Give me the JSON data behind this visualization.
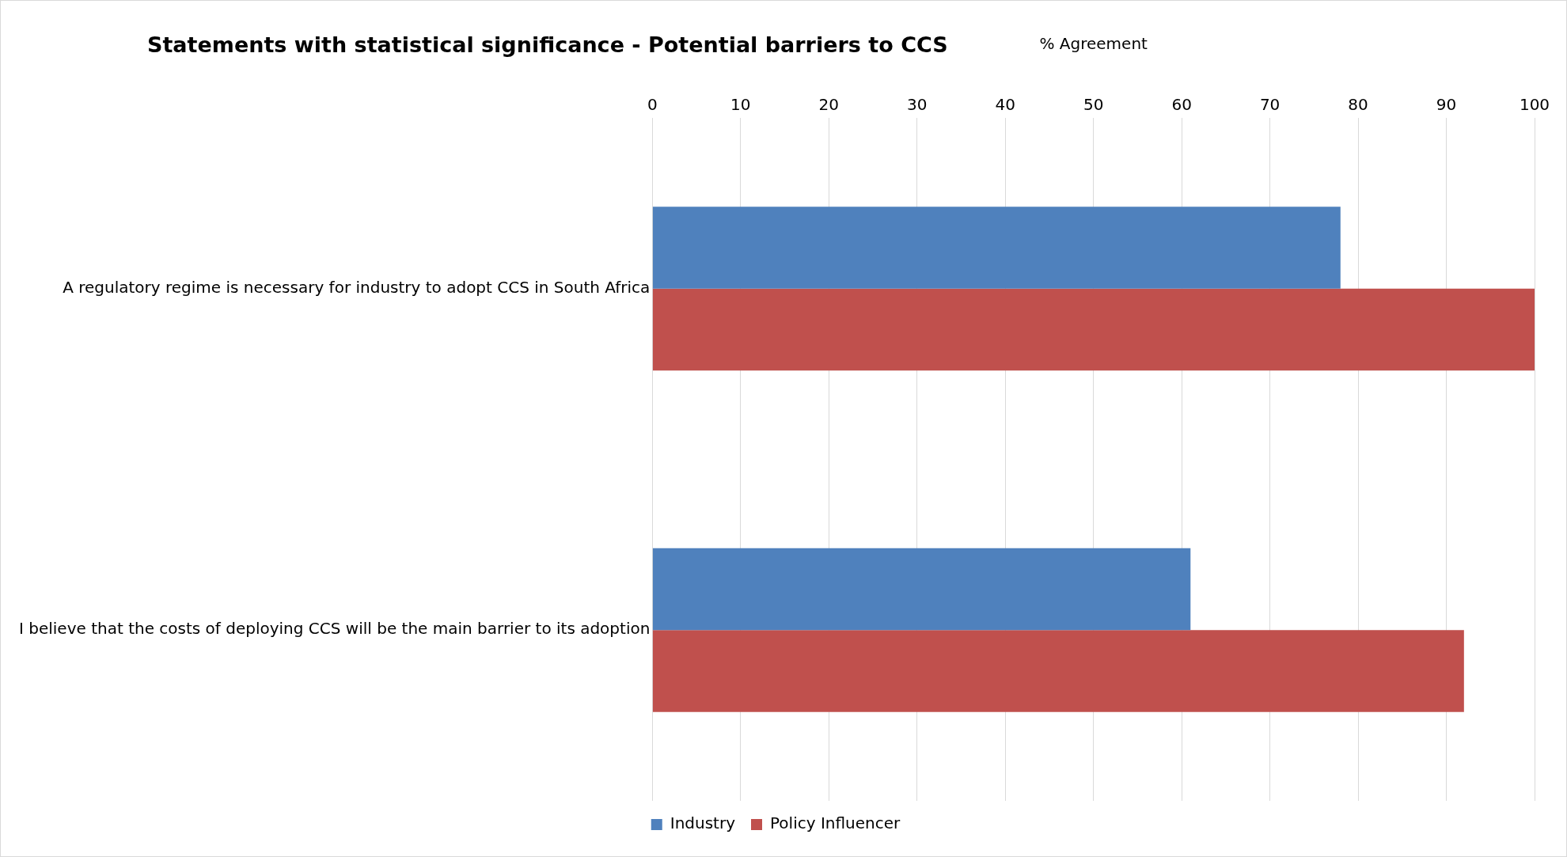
{
  "chart_data": {
    "type": "bar",
    "orientation": "horizontal",
    "title": "Statements with statistical significance - Potential barriers to CCS",
    "xlabel": "% Agreement",
    "categories": [
      "A regulatory regime is necessary for industry to adopt CCS in South Africa",
      "I believe that the costs of deploying CCS will be the main barrier to its adoption"
    ],
    "series": [
      {
        "name": "Industry",
        "color": "#4f81bd",
        "values": [
          78,
          61
        ]
      },
      {
        "name": "Policy Influencer",
        "color": "#c0504d",
        "values": [
          100,
          92
        ]
      }
    ],
    "xlim": [
      0,
      100
    ],
    "xticks": [
      0,
      10,
      20,
      30,
      40,
      50,
      60,
      70,
      80,
      90,
      100
    ],
    "grid": "x",
    "legend": "bottom"
  }
}
